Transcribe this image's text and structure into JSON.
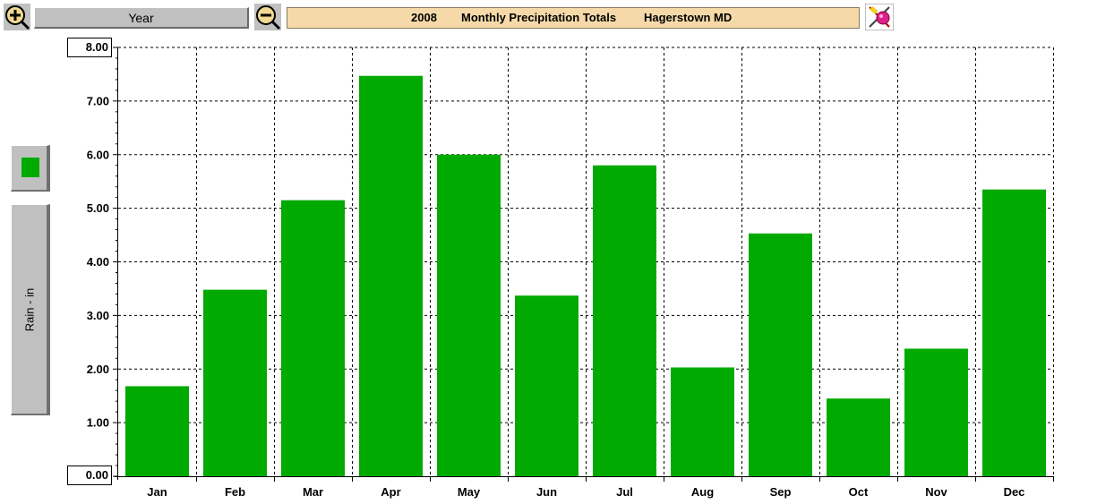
{
  "toolbar": {
    "period_label": "Year",
    "zoom_in_icon": "zoom-in-icon",
    "zoom_out_icon": "zoom-out-icon",
    "tool_icon": "paint-tool-icon"
  },
  "title": {
    "year": "2008",
    "main": "Monthly Precipitation Totals",
    "location": "Hagerstown MD"
  },
  "legend": {
    "axis_label": "Rain - in",
    "swatch_color": "#00aa00"
  },
  "chart_data": {
    "type": "bar",
    "title": "2008 Monthly Precipitation Totals Hagerstown MD",
    "ylabel": "Rain - in",
    "xlabel": "",
    "categories": [
      "Jan",
      "Feb",
      "Mar",
      "Apr",
      "May",
      "Jun",
      "Jul",
      "Aug",
      "Sep",
      "Oct",
      "Nov",
      "Dec"
    ],
    "values": [
      1.68,
      3.48,
      5.15,
      7.47,
      6.0,
      3.37,
      5.8,
      2.03,
      4.53,
      1.45,
      2.38,
      5.35
    ],
    "ylim": [
      0,
      8
    ],
    "yticks": [
      "0.00",
      "1.00",
      "2.00",
      "3.00",
      "4.00",
      "5.00",
      "6.00",
      "7.00",
      "8.00"
    ],
    "bar_color": "#00aa00",
    "grid": true
  }
}
